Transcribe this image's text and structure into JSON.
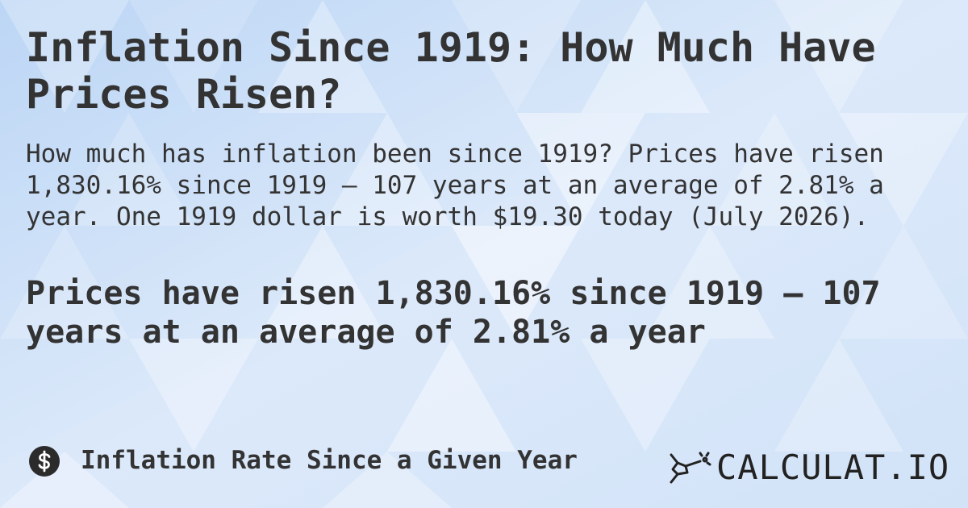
{
  "header": {
    "title": "Inflation Since 1919: How Much Have Prices Risen?"
  },
  "description": "How much has inflation been since 1919? Prices have risen 1,830.16% since 1919 — 107 years at an average of 2.81% a year. One 1919 dollar is worth $19.30 today (July 2026).",
  "headline": "Prices have risen 1,830.16% since 1919 — 107 years at an average of 2.81% a year",
  "footer": {
    "category": "Inflation Rate Since a Given Year",
    "brand": "CALCULAT.IO"
  }
}
